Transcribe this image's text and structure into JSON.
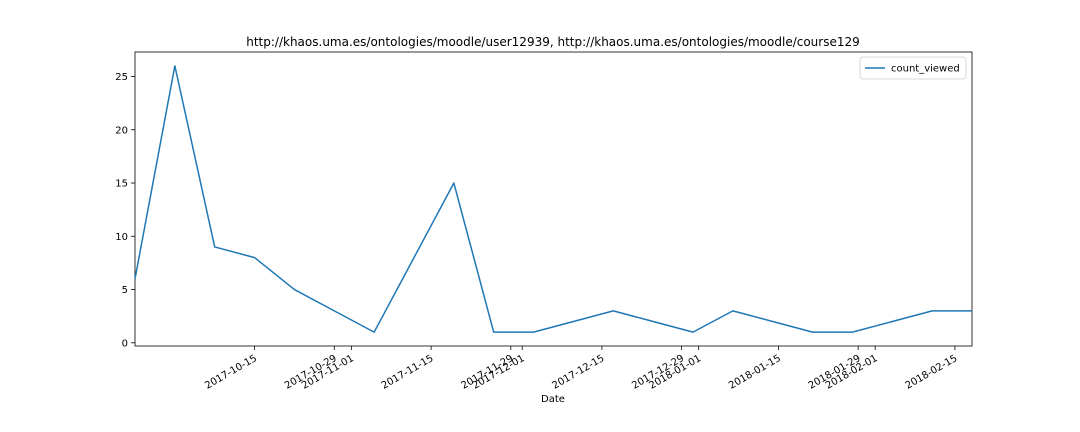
{
  "chart_data": {
    "type": "line",
    "title": "http://khaos.uma.es/ontologies/moodle/user12939, http://khaos.uma.es/ontologies/moodle/course129",
    "xlabel": "Date",
    "ylabel": "",
    "x_type": "date",
    "xlim": [
      "2017-09-24",
      "2018-02-18"
    ],
    "ylim": [
      -0.3,
      27.3
    ],
    "yticks": [
      0,
      5,
      10,
      15,
      20,
      25
    ],
    "xticks": [
      "2017-10-15",
      "2017-10-29",
      "2017-11-01",
      "2017-11-15",
      "2017-11-29",
      "2017-12-01",
      "2017-12-15",
      "2017-12-29",
      "2018-01-01",
      "2018-01-15",
      "2018-01-29",
      "2018-02-01",
      "2018-02-15"
    ],
    "grid": false,
    "legend_position": "top-right",
    "series": [
      {
        "name": "count_viewed",
        "color": "#1f77b4",
        "x": [
          "2017-09-24",
          "2017-10-01",
          "2017-10-08",
          "2017-10-15",
          "2017-10-22",
          "2017-10-29",
          "2017-11-05",
          "2017-11-12",
          "2017-11-19",
          "2017-11-26",
          "2017-12-03",
          "2017-12-10",
          "2017-12-17",
          "2017-12-24",
          "2017-12-31",
          "2018-01-07",
          "2018-01-14",
          "2018-01-21",
          "2018-01-28",
          "2018-02-04",
          "2018-02-11",
          "2018-02-18"
        ],
        "y": [
          6,
          26,
          9,
          8,
          5,
          3,
          1,
          8,
          15,
          1,
          1,
          2,
          3,
          2,
          1,
          3,
          2,
          1,
          1,
          2,
          3,
          3
        ]
      }
    ]
  }
}
